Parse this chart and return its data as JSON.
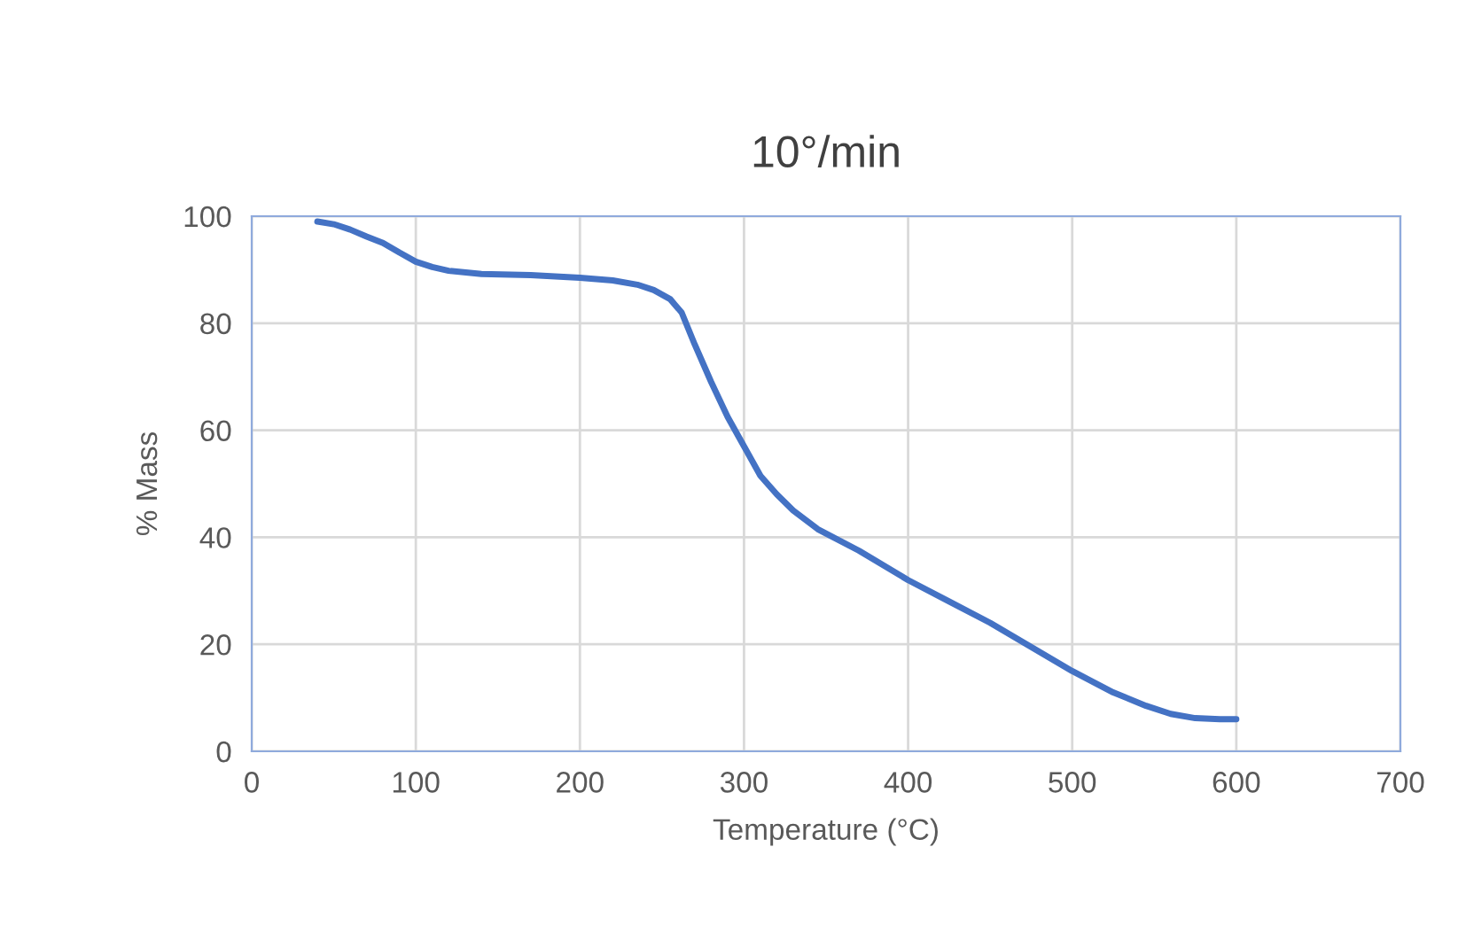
{
  "chart_data": {
    "type": "line",
    "title": "10°/min",
    "xlabel": "Temperature (°C)",
    "ylabel": "% Mass",
    "series": [
      {
        "color": "#4472c4",
        "x": [
          40,
          50,
          60,
          70,
          80,
          90,
          100,
          110,
          120,
          140,
          170,
          200,
          220,
          235,
          245,
          255,
          262,
          270,
          280,
          290,
          300,
          310,
          320,
          330,
          345,
          370,
          400,
          425,
          450,
          475,
          500,
          525,
          545,
          560,
          575,
          590,
          600
        ],
        "values": [
          99,
          98.5,
          97.5,
          96.2,
          95,
          93.2,
          91.5,
          90.5,
          89.8,
          89.2,
          89,
          88.5,
          88,
          87.2,
          86.2,
          84.5,
          82,
          76,
          69,
          62.5,
          57,
          51.5,
          48,
          45,
          41.5,
          37.5,
          32,
          28,
          24,
          19.5,
          15,
          11,
          8.5,
          7,
          6.2,
          6,
          6
        ]
      }
    ],
    "xlim": [
      0,
      700
    ],
    "xticks": [
      0,
      100,
      200,
      300,
      400,
      500,
      600,
      700
    ],
    "ylim": [
      0,
      100
    ],
    "yticks": [
      0,
      20,
      40,
      60,
      80,
      100
    ],
    "grid": true,
    "marker": "none",
    "line_style": "solid"
  }
}
